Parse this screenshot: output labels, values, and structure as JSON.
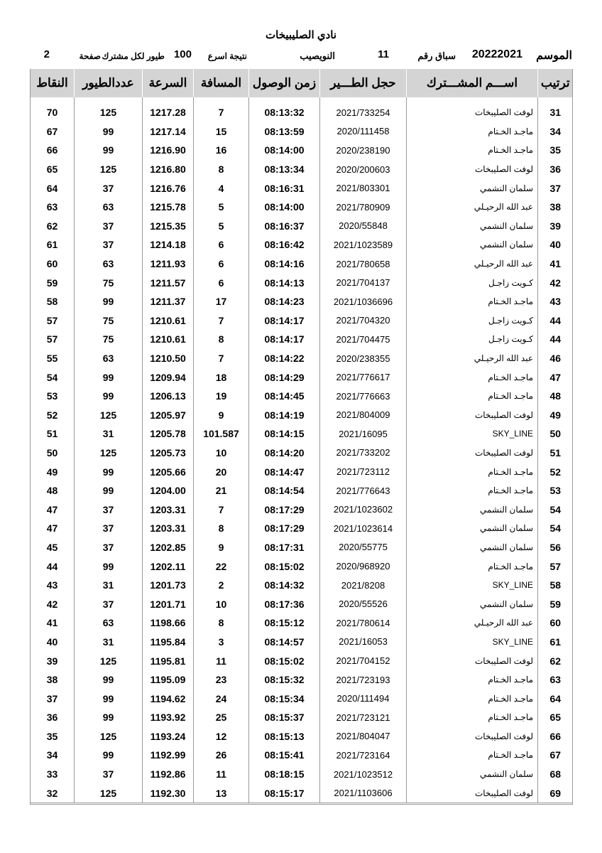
{
  "title": "نادي الصليبيخات",
  "info": {
    "season_label": "الموسم",
    "season": "20222021",
    "race_label": "سباق رقم",
    "race_no": "11",
    "location": "النويصيب",
    "fastest_label": "نتيجة اسرع",
    "fastest_count": "100",
    "per_member_label": "طيور لكل مشترك",
    "page_label": "صفحة",
    "page_no": "2"
  },
  "columns": [
    "ترتيب",
    "اســـم المشـــترك",
    "حجل الطـــير",
    "زمن الوصول",
    "المسافة",
    "السرعة",
    "عددالطيور",
    "النقاط"
  ],
  "rows": [
    [
      "31",
      "لوفت الصليبخات",
      "2021/733254",
      "08:13:32",
      "7",
      "1217.28",
      "125",
      "70"
    ],
    [
      "34",
      "ماجـد الخـتام",
      "2020/111458",
      "08:13:59",
      "15",
      "1217.14",
      "99",
      "67"
    ],
    [
      "35",
      "ماجـد الخـتام",
      "2020/238190",
      "08:14:00",
      "16",
      "1216.90",
      "99",
      "66"
    ],
    [
      "36",
      "لوفت الصليبخات",
      "2020/200603",
      "08:13:34",
      "8",
      "1216.80",
      "125",
      "65"
    ],
    [
      "37",
      "سلمان النشمي",
      "2021/803301",
      "08:16:31",
      "4",
      "1216.76",
      "37",
      "64"
    ],
    [
      "38",
      "عبد الله الرحيـلي",
      "2021/780909",
      "08:14:00",
      "5",
      "1215.78",
      "63",
      "63"
    ],
    [
      "39",
      "سلمان النشمي",
      "2020/55848",
      "08:16:37",
      "5",
      "1215.35",
      "37",
      "62"
    ],
    [
      "40",
      "سلمان النشمي",
      "2021/1023589",
      "08:16:42",
      "6",
      "1214.18",
      "37",
      "61"
    ],
    [
      "41",
      "عبد الله الرحيـلي",
      "2021/780658",
      "08:14:16",
      "6",
      "1211.93",
      "63",
      "60"
    ],
    [
      "42",
      "كـويت زاجـل",
      "2021/704137",
      "08:14:13",
      "6",
      "1211.57",
      "75",
      "59"
    ],
    [
      "43",
      "ماجـد الخـتام",
      "2021/1036696",
      "08:14:23",
      "17",
      "1211.37",
      "99",
      "58"
    ],
    [
      "44",
      "كـويت زاجـل",
      "2021/704320",
      "08:14:17",
      "7",
      "1210.61",
      "75",
      "57"
    ],
    [
      "44",
      "كـويت زاجـل",
      "2021/704475",
      "08:14:17",
      "8",
      "1210.61",
      "75",
      "57"
    ],
    [
      "46",
      "عبد الله الرحيـلي",
      "2020/238355",
      "08:14:22",
      "7",
      "1210.50",
      "63",
      "55"
    ],
    [
      "47",
      "ماجـد الخـتام",
      "2021/776617",
      "08:14:29",
      "18",
      "1209.94",
      "99",
      "54"
    ],
    [
      "48",
      "ماجـد الخـتام",
      "2021/776663",
      "08:14:45",
      "19",
      "1206.13",
      "99",
      "53"
    ],
    [
      "49",
      "لوفت الصليبخات",
      "2021/804009",
      "08:14:19",
      "9",
      "1205.97",
      "125",
      "52"
    ],
    [
      "50",
      "SKY_LINE",
      "2021/16095",
      "08:14:15",
      "101.587",
      "1205.78",
      "31",
      "51"
    ],
    [
      "51",
      "لوفت الصليبخات",
      "2021/733202",
      "08:14:20",
      "10",
      "1205.73",
      "125",
      "50"
    ],
    [
      "52",
      "ماجـد الخـتام",
      "2021/723112",
      "08:14:47",
      "20",
      "1205.66",
      "99",
      "49"
    ],
    [
      "53",
      "ماجـد الخـتام",
      "2021/776643",
      "08:14:54",
      "21",
      "1204.00",
      "99",
      "48"
    ],
    [
      "54",
      "سلمان النشمي",
      "2021/1023602",
      "08:17:29",
      "7",
      "1203.31",
      "37",
      "47"
    ],
    [
      "54",
      "سلمان النشمي",
      "2021/1023614",
      "08:17:29",
      "8",
      "1203.31",
      "37",
      "47"
    ],
    [
      "56",
      "سلمان النشمي",
      "2020/55775",
      "08:17:31",
      "9",
      "1202.85",
      "37",
      "45"
    ],
    [
      "57",
      "ماجـد الخـتام",
      "2020/968920",
      "08:15:02",
      "22",
      "1202.11",
      "99",
      "44"
    ],
    [
      "58",
      "SKY_LINE",
      "2021/8208",
      "08:14:32",
      "2",
      "1201.73",
      "31",
      "43"
    ],
    [
      "59",
      "سلمان النشمي",
      "2020/55526",
      "08:17:36",
      "10",
      "1201.71",
      "37",
      "42"
    ],
    [
      "60",
      "عبد الله الرحيـلي",
      "2021/780614",
      "08:15:12",
      "8",
      "1198.66",
      "63",
      "41"
    ],
    [
      "61",
      "SKY_LINE",
      "2021/16053",
      "08:14:57",
      "3",
      "1195.84",
      "31",
      "40"
    ],
    [
      "62",
      "لوفت الصليبخات",
      "2021/704152",
      "08:15:02",
      "11",
      "1195.81",
      "125",
      "39"
    ],
    [
      "63",
      "ماجـد الخـتام",
      "2021/723193",
      "08:15:32",
      "23",
      "1195.09",
      "99",
      "38"
    ],
    [
      "64",
      "ماجـد الخـتام",
      "2020/111494",
      "08:15:34",
      "24",
      "1194.62",
      "99",
      "37"
    ],
    [
      "65",
      "ماجـد الخـتام",
      "2021/723121",
      "08:15:37",
      "25",
      "1193.92",
      "99",
      "36"
    ],
    [
      "66",
      "لوفت الصليبخات",
      "2021/804047",
      "08:15:13",
      "12",
      "1193.24",
      "125",
      "35"
    ],
    [
      "67",
      "ماجـد الخـتام",
      "2021/723164",
      "08:15:41",
      "26",
      "1192.99",
      "99",
      "34"
    ],
    [
      "68",
      "سلمان النشمي",
      "2021/1023512",
      "08:18:15",
      "11",
      "1192.86",
      "37",
      "33"
    ],
    [
      "69",
      "لوفت الصليبخات",
      "2021/1103606",
      "08:15:17",
      "13",
      "1192.30",
      "125",
      "32"
    ]
  ]
}
